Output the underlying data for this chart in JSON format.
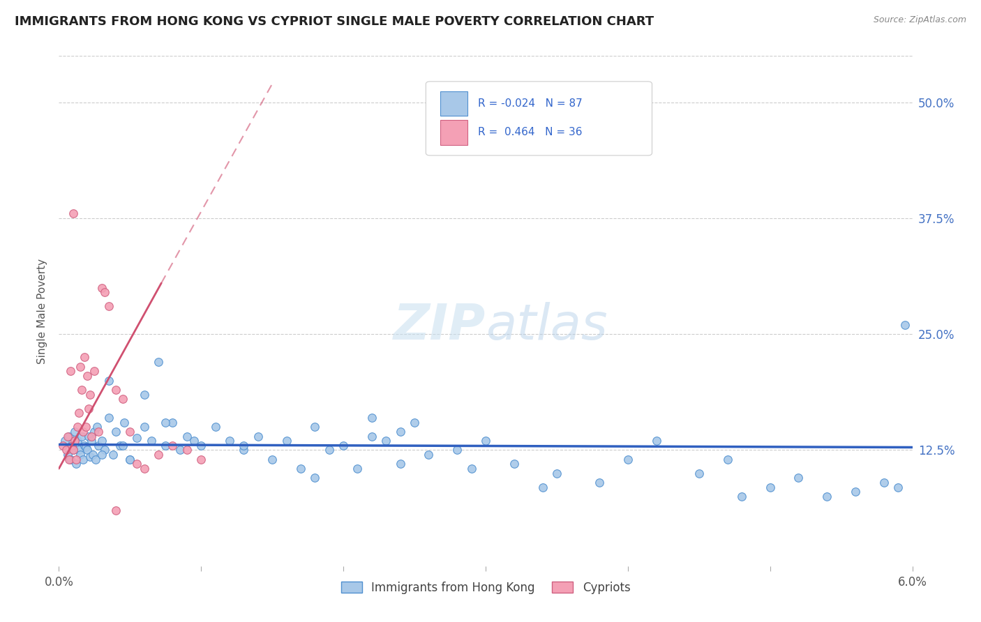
{
  "title": "IMMIGRANTS FROM HONG KONG VS CYPRIOT SINGLE MALE POVERTY CORRELATION CHART",
  "source": "Source: ZipAtlas.com",
  "legend_label1": "Immigrants from Hong Kong",
  "legend_label2": "Cypriots",
  "R1": -0.024,
  "N1": 87,
  "R2": 0.464,
  "N2": 36,
  "x_min": 0.0,
  "x_max": 6.0,
  "y_min": 0.0,
  "y_max": 55.0,
  "y_ticks": [
    12.5,
    25.0,
    37.5,
    50.0
  ],
  "y_tick_labels": [
    "12.5%",
    "25.0%",
    "37.5%",
    "50.0%"
  ],
  "x_ticks": [
    0.0,
    1.0,
    2.0,
    3.0,
    4.0,
    5.0,
    6.0
  ],
  "color_hk": "#a8c8e8",
  "color_cy": "#f4a0b5",
  "color_hk_edge": "#5090d0",
  "color_cy_edge": "#d06080",
  "color_hk_line": "#3060c0",
  "color_cy_line": "#d05070",
  "background_color": "#ffffff",
  "hk_x": [
    0.04,
    0.06,
    0.07,
    0.08,
    0.09,
    0.1,
    0.11,
    0.12,
    0.13,
    0.14,
    0.15,
    0.16,
    0.17,
    0.18,
    0.19,
    0.2,
    0.21,
    0.22,
    0.23,
    0.24,
    0.25,
    0.26,
    0.27,
    0.28,
    0.3,
    0.32,
    0.35,
    0.38,
    0.4,
    0.43,
    0.46,
    0.5,
    0.55,
    0.6,
    0.65,
    0.7,
    0.75,
    0.8,
    0.85,
    0.9,
    0.95,
    1.0,
    1.1,
    1.2,
    1.3,
    1.4,
    1.5,
    1.6,
    1.7,
    1.8,
    1.9,
    2.0,
    2.1,
    2.2,
    2.3,
    2.4,
    2.5,
    2.6,
    2.8,
    3.0,
    3.2,
    3.5,
    3.8,
    4.0,
    4.2,
    4.5,
    4.7,
    5.0,
    5.2,
    5.4,
    5.6,
    5.8,
    5.9,
    5.95,
    2.2,
    2.4,
    1.3,
    0.45,
    0.6,
    0.35,
    1.8,
    2.9,
    3.4,
    4.8,
    0.3,
    0.5,
    0.75
  ],
  "hk_y": [
    13.5,
    12.0,
    14.0,
    11.5,
    13.0,
    12.5,
    14.5,
    11.0,
    13.5,
    12.5,
    12.0,
    14.0,
    11.5,
    13.0,
    12.8,
    12.5,
    14.0,
    11.8,
    13.5,
    12.0,
    14.5,
    11.5,
    15.0,
    13.0,
    13.5,
    12.5,
    16.0,
    12.0,
    14.5,
    13.0,
    15.5,
    11.5,
    13.8,
    15.0,
    13.5,
    22.0,
    13.0,
    15.5,
    12.5,
    14.0,
    13.5,
    13.0,
    15.0,
    13.5,
    12.5,
    14.0,
    11.5,
    13.5,
    10.5,
    15.0,
    12.5,
    13.0,
    10.5,
    14.0,
    13.5,
    11.0,
    15.5,
    12.0,
    12.5,
    13.5,
    11.0,
    10.0,
    9.0,
    11.5,
    13.5,
    10.0,
    11.5,
    8.5,
    9.5,
    7.5,
    8.0,
    9.0,
    8.5,
    26.0,
    16.0,
    14.5,
    13.0,
    13.0,
    18.5,
    20.0,
    9.5,
    10.5,
    8.5,
    7.5,
    12.0,
    11.5,
    15.5
  ],
  "cy_x": [
    0.03,
    0.05,
    0.06,
    0.07,
    0.08,
    0.09,
    0.1,
    0.11,
    0.12,
    0.13,
    0.14,
    0.15,
    0.16,
    0.17,
    0.18,
    0.19,
    0.2,
    0.21,
    0.22,
    0.23,
    0.25,
    0.28,
    0.3,
    0.32,
    0.35,
    0.4,
    0.45,
    0.5,
    0.55,
    0.6,
    0.7,
    0.8,
    0.9,
    1.0,
    0.1,
    0.4
  ],
  "cy_y": [
    13.0,
    12.5,
    14.0,
    11.5,
    21.0,
    13.0,
    12.5,
    13.5,
    11.5,
    15.0,
    16.5,
    21.5,
    19.0,
    14.5,
    22.5,
    15.0,
    20.5,
    17.0,
    18.5,
    14.0,
    21.0,
    14.5,
    30.0,
    29.5,
    28.0,
    19.0,
    18.0,
    14.5,
    11.0,
    10.5,
    12.0,
    13.0,
    12.5,
    11.5,
    38.0,
    6.0
  ],
  "cy_line_x0": 0.0,
  "cy_line_y0": 10.5,
  "cy_line_x1": 0.72,
  "cy_line_y1": 30.5,
  "cy_dash_x0": 0.72,
  "cy_dash_y0": 30.5,
  "cy_dash_x1": 1.5,
  "cy_dash_y1": 52.0,
  "hk_line_x0": 0.0,
  "hk_line_y0": 13.1,
  "hk_line_x1": 6.0,
  "hk_line_y1": 12.8
}
